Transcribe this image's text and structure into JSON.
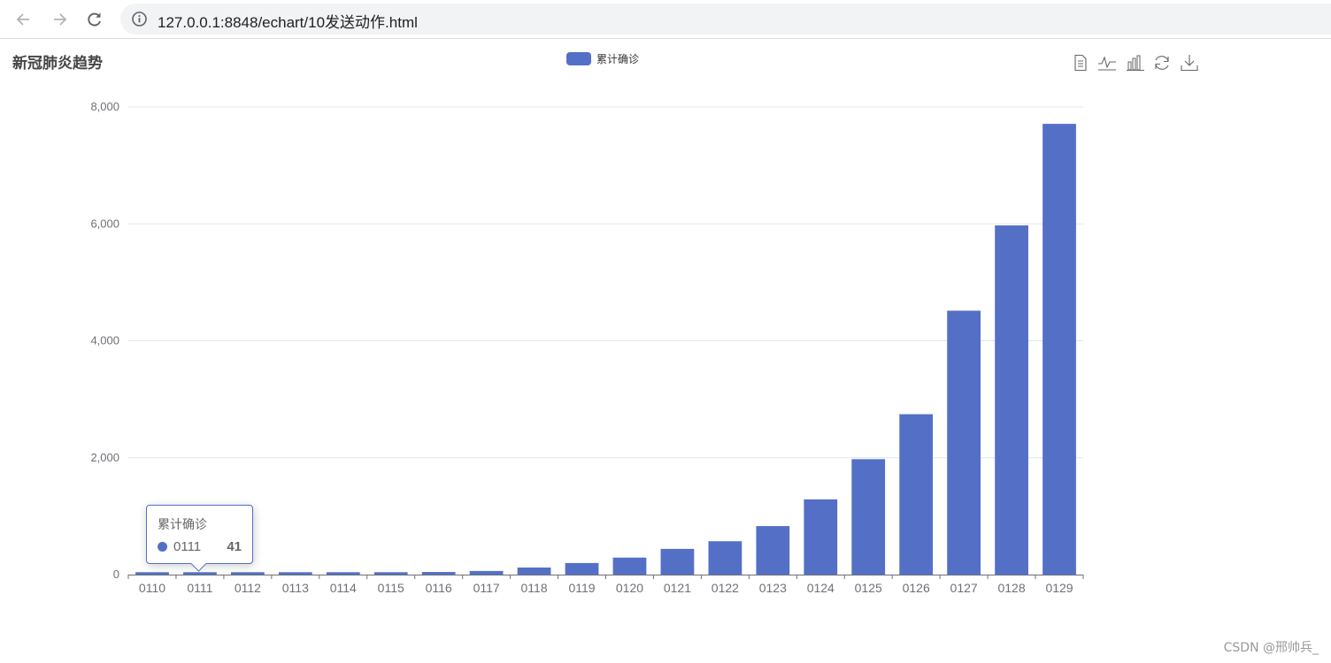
{
  "browser": {
    "url": "127.0.0.1:8848/echart/10发送动作.html",
    "icons": [
      "back-arrow-icon",
      "forward-arrow-icon",
      "reload-icon",
      "info-icon"
    ]
  },
  "toolbox": {
    "icons": [
      "data-view-icon",
      "line-chart-icon",
      "bar-chart-icon",
      "restore-icon",
      "save-image-icon"
    ]
  },
  "tooltip": {
    "series": "累计确诊",
    "category": "0111",
    "value": "41"
  },
  "watermark": "CSDN @邢帅兵_",
  "colors": {
    "bar": "#5470c6",
    "axis": "#6e7079",
    "grid": "#e0e6f1",
    "title": "#464646"
  },
  "chart_data": {
    "type": "bar",
    "title": "新冠肺炎趋势",
    "categories": [
      "0110",
      "0111",
      "0112",
      "0113",
      "0114",
      "0115",
      "0116",
      "0117",
      "0118",
      "0119",
      "0120",
      "0121",
      "0122",
      "0123",
      "0124",
      "0125",
      "0126",
      "0127",
      "0128",
      "0129"
    ],
    "series": [
      {
        "name": "累计确诊",
        "values": [
          41,
          41,
          41,
          41,
          41,
          41,
          45,
          62,
          121,
          198,
          291,
          440,
          571,
          830,
          1287,
          1975,
          2744,
          4515,
          5974,
          7711
        ]
      }
    ],
    "yticks": [
      0,
      2000,
      4000,
      6000,
      8000
    ],
    "ytick_labels": [
      "0",
      "2,000",
      "4,000",
      "6,000",
      "8,000"
    ],
    "ylim": [
      0,
      8000
    ],
    "xlabel": "",
    "ylabel": "",
    "grid": true,
    "legend_position": "top-center"
  }
}
